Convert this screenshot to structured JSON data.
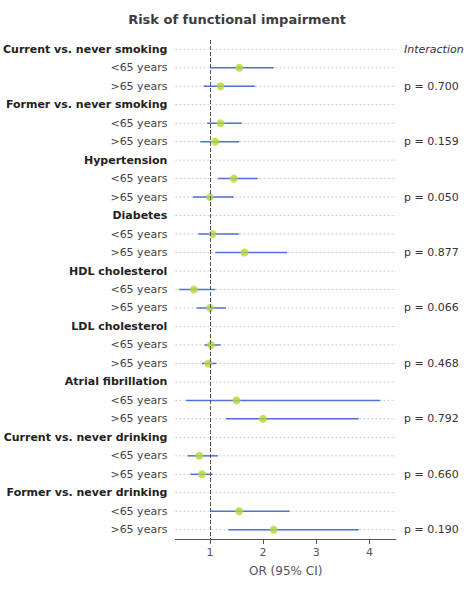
{
  "chart_data": {
    "type": "forest",
    "title": "Risk of functional impairment",
    "xlabel": "OR (95% CI)",
    "interaction_label": "Interaction",
    "categories": [
      "Current vs. never smoking",
      "<65 years",
      ">65 years",
      "Former vs. never smoking",
      "<65 years",
      ">65 years",
      "Hypertension",
      "<65 years",
      ">65 years",
      "Diabetes",
      "<65 years",
      ">65 years",
      "HDL cholesterol",
      "<65 years",
      ">65 years",
      "LDL cholesterol",
      "<65 years",
      ">65 years",
      "Atrial fibrillation",
      "<65 years",
      ">65 years",
      "Current vs. never drinking",
      "<65 years",
      ">65 years",
      "Former vs. never drinking",
      "<65 years",
      ">65 years"
    ],
    "is_header": [
      true,
      false,
      false,
      true,
      false,
      false,
      true,
      false,
      false,
      true,
      false,
      false,
      true,
      false,
      false,
      true,
      false,
      false,
      true,
      false,
      false,
      true,
      false,
      false,
      true,
      false,
      false
    ],
    "values": [
      null,
      1.55,
      1.2,
      null,
      1.2,
      1.1,
      null,
      1.45,
      1.0,
      null,
      1.05,
      1.65,
      null,
      0.7,
      1.0,
      null,
      1.02,
      0.97,
      null,
      1.5,
      2.0,
      null,
      0.8,
      0.85,
      null,
      1.55,
      2.2
    ],
    "ci_low": [
      null,
      1.0,
      0.88,
      null,
      0.95,
      0.82,
      null,
      1.15,
      0.68,
      null,
      0.78,
      1.1,
      null,
      0.42,
      0.75,
      null,
      0.9,
      0.85,
      null,
      0.55,
      1.3,
      null,
      0.58,
      0.63,
      null,
      1.0,
      1.35
    ],
    "ci_high": [
      null,
      2.2,
      1.85,
      null,
      1.6,
      1.55,
      null,
      1.9,
      1.45,
      null,
      1.55,
      2.45,
      null,
      1.1,
      1.3,
      null,
      1.2,
      1.12,
      null,
      4.2,
      3.8,
      null,
      1.15,
      1.05,
      null,
      2.5,
      3.8
    ],
    "p_labels": [
      null,
      null,
      "p = 0.700",
      null,
      null,
      "p = 0.159",
      null,
      null,
      "p = 0.050",
      null,
      null,
      "p = 0.877",
      null,
      null,
      "p = 0.066",
      null,
      null,
      "p = 0.468",
      null,
      null,
      "p = 0.792",
      null,
      null,
      "p = 0.660",
      null,
      null,
      "p = 0.190"
    ],
    "xlim": [
      0.35,
      4.5
    ],
    "xticks": [
      1,
      2,
      3,
      4
    ],
    "reference_line": 1.0,
    "grid": true
  }
}
